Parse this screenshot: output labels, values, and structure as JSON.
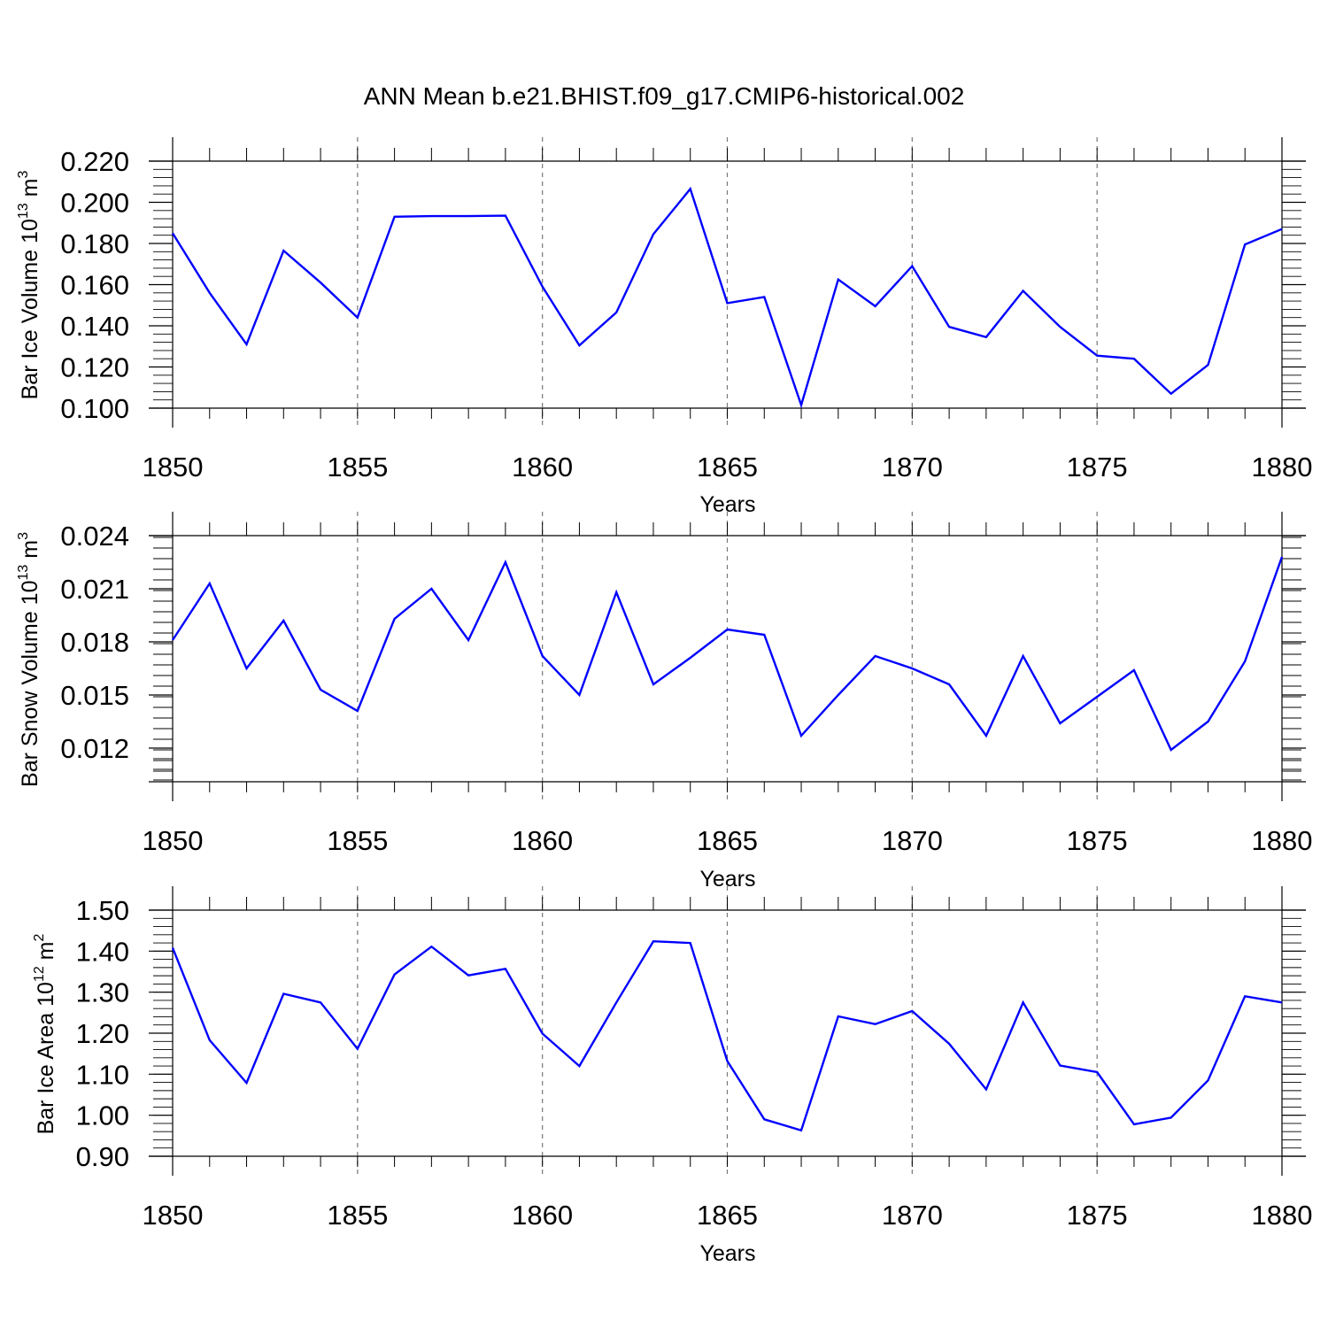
{
  "title": "ANN Mean b.e21.BHIST.f09_g17.CMIP6-historical.002",
  "line_color": "#0000ff",
  "grid_color": "#777777",
  "chart_data": [
    {
      "type": "line",
      "ylabel_main": "Bar Ice Volume 10",
      "ylabel_sup1": "13",
      "ylabel_mid": " m",
      "ylabel_sup2": "3",
      "xlabel": "Years",
      "xlim": [
        1850,
        1880
      ],
      "ylim": [
        0.1,
        0.22
      ],
      "yticks": [
        0.1,
        0.12,
        0.14,
        0.16,
        0.18,
        0.2,
        0.22
      ],
      "ytick_labels": [
        "0.100",
        "0.120",
        "0.140",
        "0.160",
        "0.180",
        "0.200",
        "0.220"
      ],
      "xticks": [
        1850,
        1855,
        1860,
        1865,
        1870,
        1875,
        1880
      ],
      "xtick_labels": [
        "1850",
        "1855",
        "1860",
        "1865",
        "1870",
        "1875",
        "1880"
      ],
      "x": [
        1850,
        1851,
        1852,
        1853,
        1854,
        1855,
        1856,
        1857,
        1858,
        1859,
        1860,
        1861,
        1862,
        1863,
        1864,
        1865,
        1866,
        1867,
        1868,
        1869,
        1870,
        1871,
        1872,
        1873,
        1874,
        1875,
        1876,
        1877,
        1878,
        1879,
        1880
      ],
      "values": [
        0.185,
        0.156,
        0.131,
        0.1765,
        0.161,
        0.144,
        0.193,
        0.1933,
        0.1933,
        0.1935,
        0.159,
        0.1305,
        0.1465,
        0.1845,
        0.2065,
        0.151,
        0.154,
        0.1015,
        0.1625,
        0.1495,
        0.169,
        0.1395,
        0.1345,
        0.157,
        0.1395,
        0.1255,
        0.124,
        0.107,
        0.121,
        0.1795,
        0.187
      ]
    },
    {
      "type": "line",
      "ylabel_main": "Bar Snow Volume 10",
      "ylabel_sup1": "13",
      "ylabel_mid": " m",
      "ylabel_sup2": "3",
      "xlabel": "Years",
      "xlim": [
        1850,
        1880
      ],
      "ylim": [
        0.0101,
        0.024
      ],
      "yticks": [
        0.012,
        0.015,
        0.018,
        0.021,
        0.024
      ],
      "ytick_labels": [
        "0.012",
        "0.015",
        "0.018",
        "0.021",
        "0.024"
      ],
      "xticks": [
        1850,
        1855,
        1860,
        1865,
        1870,
        1875,
        1880
      ],
      "xtick_labels": [
        "1850",
        "1855",
        "1860",
        "1865",
        "1870",
        "1875",
        "1880"
      ],
      "x": [
        1850,
        1851,
        1852,
        1853,
        1854,
        1855,
        1856,
        1857,
        1858,
        1859,
        1860,
        1861,
        1862,
        1863,
        1864,
        1865,
        1866,
        1867,
        1868,
        1869,
        1870,
        1871,
        1872,
        1873,
        1874,
        1875,
        1876,
        1877,
        1878,
        1879,
        1880
      ],
      "values": [
        0.0181,
        0.0213,
        0.0165,
        0.0192,
        0.0153,
        0.0141,
        0.0193,
        0.021,
        0.0181,
        0.0225,
        0.0172,
        0.015,
        0.0208,
        0.0156,
        0.0171,
        0.0187,
        0.0184,
        0.0127,
        0.015,
        0.0172,
        0.0165,
        0.0156,
        0.0127,
        0.0172,
        0.0134,
        0.0149,
        0.0164,
        0.0119,
        0.0135,
        0.0169,
        0.0228
      ]
    },
    {
      "type": "line",
      "ylabel_main": "Bar Ice Area 10",
      "ylabel_sup1": "12",
      "ylabel_mid": " m",
      "ylabel_sup2": "2",
      "xlabel": "Years",
      "xlim": [
        1850,
        1880
      ],
      "ylim": [
        0.9,
        1.5
      ],
      "yticks": [
        0.9,
        1.0,
        1.1,
        1.2,
        1.3,
        1.4,
        1.5
      ],
      "ytick_labels": [
        "0.90",
        "1.00",
        "1.10",
        "1.20",
        "1.30",
        "1.40",
        "1.50"
      ],
      "xticks": [
        1850,
        1855,
        1860,
        1865,
        1870,
        1875,
        1880
      ],
      "xtick_labels": [
        "1850",
        "1855",
        "1860",
        "1865",
        "1870",
        "1875",
        "1880"
      ],
      "x": [
        1850,
        1851,
        1852,
        1853,
        1854,
        1855,
        1856,
        1857,
        1858,
        1859,
        1860,
        1861,
        1862,
        1863,
        1864,
        1865,
        1866,
        1867,
        1868,
        1869,
        1870,
        1871,
        1872,
        1873,
        1874,
        1875,
        1876,
        1877,
        1878,
        1879,
        1880
      ],
      "values": [
        1.408,
        1.183,
        1.079,
        1.296,
        1.275,
        1.162,
        1.343,
        1.411,
        1.341,
        1.357,
        1.199,
        1.12,
        1.275,
        1.424,
        1.42,
        1.132,
        0.99,
        0.963,
        1.241,
        1.222,
        1.254,
        1.174,
        1.063,
        1.275,
        1.121,
        1.105,
        0.978,
        0.994,
        1.085,
        1.29,
        1.275
      ]
    }
  ]
}
